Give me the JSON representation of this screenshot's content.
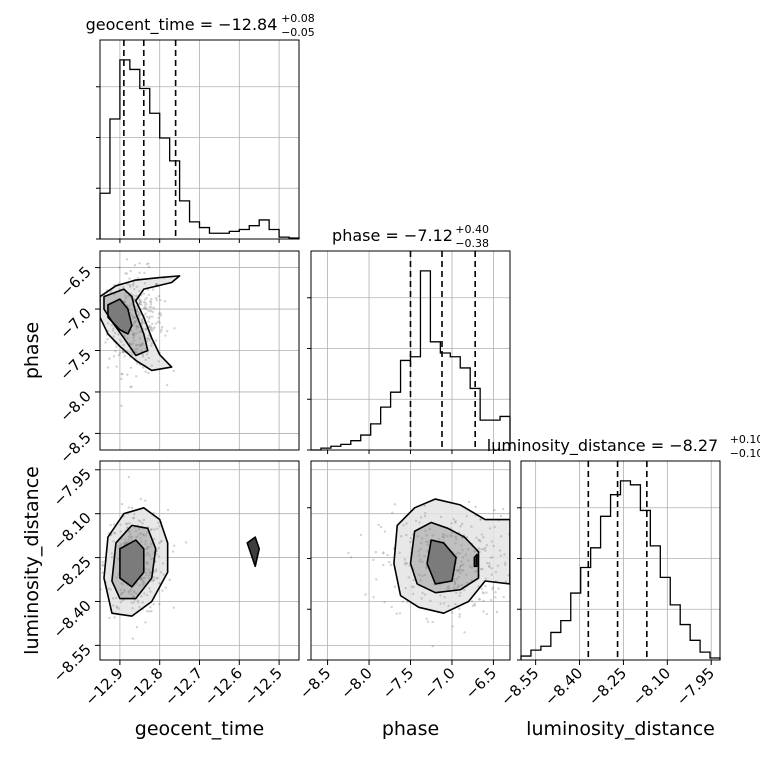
{
  "colors": {
    "background": "#ffffff",
    "line": "#000000",
    "grid": "#b0b0b0",
    "points": "#7f7f7f"
  },
  "chart_data": {
    "type": "corner",
    "grid": true,
    "parameters": [
      {
        "name": "geocent_time",
        "label": "geocent_time",
        "range": [
          -12.95,
          -12.45
        ],
        "ticks": [
          -12.9,
          -12.8,
          -12.7,
          -12.6,
          -12.5
        ],
        "tick_labels": [
          "−12.9",
          "−12.8",
          "−12.7",
          "−12.6",
          "−12.5"
        ],
        "title_main": "geocent_time = −12.84",
        "title_plus": "+0.08",
        "title_minus": "−0.05",
        "quantiles": [
          -12.89,
          -12.84,
          -12.76
        ],
        "histogram": [
          0.24,
          0.63,
          0.94,
          0.89,
          0.79,
          0.66,
          0.53,
          0.41,
          0.2,
          0.09,
          0.06,
          0.03,
          0.03,
          0.04,
          0.05,
          0.07,
          0.1,
          0.05,
          0.01,
          0.005
        ]
      },
      {
        "name": "phase",
        "label": "phase",
        "range": [
          -8.7,
          -6.3
        ],
        "ticks": [
          -8.5,
          -8.0,
          -7.5,
          -7.0,
          -6.5
        ],
        "tick_labels": [
          "−8.5",
          "−8.0",
          "−7.5",
          "−7.0",
          "−6.5"
        ],
        "title_main": "phase = −7.12",
        "title_plus": "+0.40",
        "title_minus": "−0.38",
        "quantiles": [
          -7.5,
          -7.12,
          -6.72
        ],
        "histogram": [
          0.0,
          0.01,
          0.02,
          0.03,
          0.05,
          0.08,
          0.14,
          0.23,
          0.31,
          0.48,
          0.5,
          0.96,
          0.58,
          0.52,
          0.5,
          0.44,
          0.33,
          0.16,
          0.16,
          0.18
        ]
      },
      {
        "name": "luminosity_distance",
        "label": "luminosity_distance",
        "range": [
          -8.6,
          -7.92
        ],
        "ticks": [
          -8.55,
          -8.4,
          -8.25,
          -8.1,
          -7.95
        ],
        "tick_labels": [
          "−8.55",
          "−8.40",
          "−8.25",
          "−8.10",
          "−7.95"
        ],
        "title_main": "luminosity_distance = −8.27",
        "title_plus": "+0.10",
        "title_minus": "−0.10",
        "quantiles": [
          -8.37,
          -8.27,
          -8.17
        ],
        "histogram": [
          0.02,
          0.05,
          0.07,
          0.14,
          0.2,
          0.34,
          0.47,
          0.57,
          0.73,
          0.84,
          0.91,
          0.89,
          0.76,
          0.58,
          0.42,
          0.28,
          0.18,
          0.1,
          0.04,
          0.01
        ]
      }
    ],
    "pairs": [
      {
        "x": "geocent_time",
        "y": "phase",
        "points_mean": [
          -12.86,
          -7.15
        ],
        "points_sd": [
          0.035,
          0.3
        ],
        "contours": [
          [
            [
              -12.95,
              -6.85
            ],
            [
              -12.91,
              -6.72
            ],
            [
              -12.86,
              -6.65
            ],
            [
              -12.8,
              -6.62
            ],
            [
              -12.75,
              -6.6
            ],
            [
              -12.77,
              -6.68
            ],
            [
              -12.84,
              -6.76
            ],
            [
              -12.86,
              -6.9
            ],
            [
              -12.84,
              -7.1
            ],
            [
              -12.82,
              -7.35
            ],
            [
              -12.8,
              -7.55
            ],
            [
              -12.77,
              -7.7
            ],
            [
              -12.82,
              -7.74
            ],
            [
              -12.86,
              -7.62
            ],
            [
              -12.9,
              -7.45
            ],
            [
              -12.93,
              -7.3
            ],
            [
              -12.95,
              -7.1
            ]
          ],
          [
            [
              -12.94,
              -6.85
            ],
            [
              -12.89,
              -6.76
            ],
            [
              -12.87,
              -6.85
            ],
            [
              -12.86,
              -7.05
            ],
            [
              -12.84,
              -7.3
            ],
            [
              -12.83,
              -7.5
            ],
            [
              -12.86,
              -7.56
            ],
            [
              -12.89,
              -7.35
            ],
            [
              -12.92,
              -7.15
            ],
            [
              -12.94,
              -7.0
            ]
          ],
          [
            [
              -12.93,
              -6.95
            ],
            [
              -12.9,
              -6.88
            ],
            [
              -12.88,
              -7.0
            ],
            [
              -12.87,
              -7.2
            ],
            [
              -12.88,
              -7.3
            ],
            [
              -12.9,
              -7.25
            ],
            [
              -12.93,
              -7.1
            ]
          ]
        ]
      },
      {
        "x": "geocent_time",
        "y": "luminosity_distance",
        "points_mean": [
          -12.86,
          -8.27
        ],
        "points_sd": [
          0.04,
          0.09
        ],
        "contours": [
          [
            [
              -12.94,
              -8.32
            ],
            [
              -12.93,
              -8.18
            ],
            [
              -12.89,
              -8.1
            ],
            [
              -12.84,
              -8.08
            ],
            [
              -12.8,
              -8.12
            ],
            [
              -12.78,
              -8.2
            ],
            [
              -12.78,
              -8.3
            ],
            [
              -12.82,
              -8.4
            ],
            [
              -12.87,
              -8.45
            ],
            [
              -12.92,
              -8.44
            ]
          ],
          [
            [
              -12.92,
              -8.33
            ],
            [
              -12.91,
              -8.2
            ],
            [
              -12.87,
              -8.14
            ],
            [
              -12.83,
              -8.15
            ],
            [
              -12.81,
              -8.22
            ],
            [
              -12.82,
              -8.32
            ],
            [
              -12.86,
              -8.39
            ],
            [
              -12.9,
              -8.39
            ]
          ],
          [
            [
              -12.9,
              -8.32
            ],
            [
              -12.9,
              -8.22
            ],
            [
              -12.86,
              -8.19
            ],
            [
              -12.84,
              -8.22
            ],
            [
              -12.84,
              -8.3
            ],
            [
              -12.87,
              -8.35
            ]
          ],
          [
            [
              -12.58,
              -8.2
            ],
            [
              -12.56,
              -8.18
            ],
            [
              -12.55,
              -8.22
            ],
            [
              -12.56,
              -8.28
            ],
            [
              -12.57,
              -8.24
            ]
          ]
        ]
      },
      {
        "x": "phase",
        "y": "luminosity_distance",
        "points_mean": [
          -7.05,
          -8.27
        ],
        "points_sd": [
          0.4,
          0.09
        ],
        "contours": [
          [
            [
              -7.7,
              -8.27
            ],
            [
              -7.66,
              -8.14
            ],
            [
              -7.45,
              -8.08
            ],
            [
              -7.2,
              -8.05
            ],
            [
              -6.9,
              -8.07
            ],
            [
              -6.6,
              -8.12
            ],
            [
              -6.3,
              -8.12
            ],
            [
              -6.3,
              -8.34
            ],
            [
              -6.6,
              -8.33
            ],
            [
              -6.8,
              -8.4
            ],
            [
              -7.1,
              -8.44
            ],
            [
              -7.4,
              -8.42
            ],
            [
              -7.62,
              -8.38
            ]
          ],
          [
            [
              -7.5,
              -8.27
            ],
            [
              -7.45,
              -8.16
            ],
            [
              -7.25,
              -8.13
            ],
            [
              -7.05,
              -8.15
            ],
            [
              -6.85,
              -8.18
            ],
            [
              -6.68,
              -8.23
            ],
            [
              -6.68,
              -8.32
            ],
            [
              -6.9,
              -8.36
            ],
            [
              -7.2,
              -8.37
            ],
            [
              -7.42,
              -8.34
            ]
          ],
          [
            [
              -7.3,
              -8.27
            ],
            [
              -7.25,
              -8.19
            ],
            [
              -7.1,
              -8.2
            ],
            [
              -6.95,
              -8.25
            ],
            [
              -7.0,
              -8.33
            ],
            [
              -7.2,
              -8.34
            ]
          ],
          [
            [
              -6.73,
              -8.25
            ],
            [
              -6.7,
              -8.24
            ],
            [
              -6.7,
              -8.28
            ],
            [
              -6.73,
              -8.28
            ]
          ]
        ]
      }
    ]
  }
}
